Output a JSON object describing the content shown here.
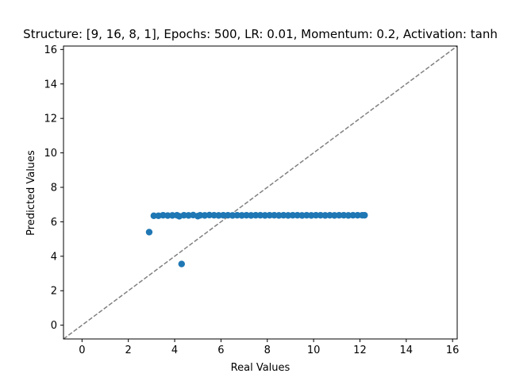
{
  "chart_data": {
    "type": "scatter",
    "title": "Structure: [9, 16, 8, 1], Epochs: 500, LR: 0.01, Momentum: 0.2, Activation: tanh",
    "xlabel": "Real Values",
    "ylabel": "Predicted Values",
    "xlim": [
      -0.8,
      16.2
    ],
    "ylim": [
      -0.8,
      16.2
    ],
    "xticks": [
      0,
      2,
      4,
      6,
      8,
      10,
      12,
      14,
      16
    ],
    "yticks": [
      0,
      2,
      4,
      6,
      8,
      10,
      12,
      14,
      16
    ],
    "grid": false,
    "marker_color": "#1f77b4",
    "reference_line": {
      "style": "dashed",
      "color": "#808080",
      "from": [
        -0.8,
        -0.8
      ],
      "to": [
        16.2,
        16.2
      ]
    },
    "series": [
      {
        "x": [
          2.9,
          4.3,
          3.1,
          3.3,
          3.5,
          3.7,
          3.9,
          4.1,
          4.2,
          4.4,
          4.6,
          4.8,
          5.0,
          5.1,
          5.3,
          5.5,
          5.7,
          5.9,
          6.1,
          6.3,
          6.5,
          6.7,
          6.9,
          7.1,
          7.3,
          7.5,
          7.7,
          7.9,
          8.1,
          8.3,
          8.5,
          8.7,
          8.9,
          9.1,
          9.3,
          9.5,
          9.7,
          9.9,
          10.1,
          10.3,
          10.5,
          10.7,
          10.9,
          11.1,
          11.3,
          11.5,
          11.7,
          11.9,
          12.1,
          12.2
        ],
        "y": [
          5.4,
          3.55,
          6.35,
          6.35,
          6.38,
          6.36,
          6.37,
          6.38,
          6.32,
          6.38,
          6.37,
          6.39,
          6.33,
          6.38,
          6.37,
          6.39,
          6.38,
          6.37,
          6.38,
          6.38,
          6.37,
          6.38,
          6.37,
          6.38,
          6.37,
          6.38,
          6.38,
          6.37,
          6.38,
          6.38,
          6.37,
          6.38,
          6.37,
          6.38,
          6.38,
          6.37,
          6.38,
          6.37,
          6.38,
          6.38,
          6.37,
          6.38,
          6.37,
          6.38,
          6.38,
          6.37,
          6.38,
          6.38,
          6.38,
          6.38
        ]
      }
    ]
  }
}
